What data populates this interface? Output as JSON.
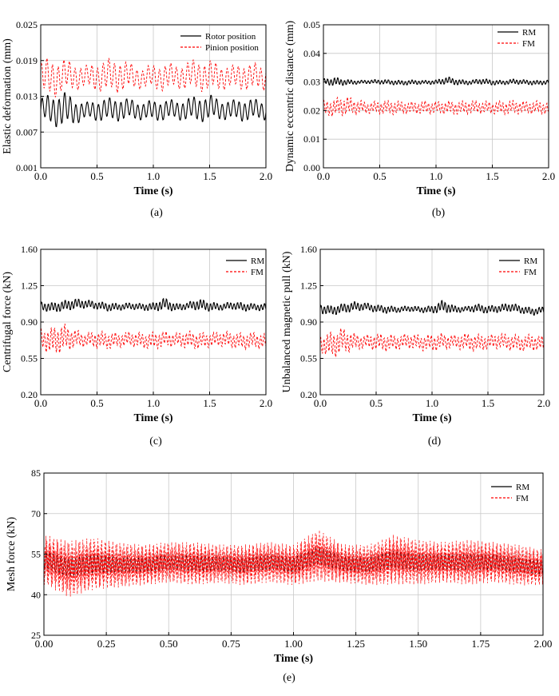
{
  "colors": {
    "rm": "#000000",
    "fm": "#ff0000",
    "grid": "#c8c8c8",
    "axis": "#000000"
  },
  "chart_data": [
    {
      "id": "a",
      "type": "line",
      "caption": "(a)",
      "xlabel": "Time (s)",
      "ylabel": "Elastic deformation (mm)",
      "xlim": [
        0,
        2
      ],
      "ylim": [
        0.001,
        0.025
      ],
      "xticks": [
        "0.0",
        "0.5",
        "1.0",
        "1.5",
        "2.0"
      ],
      "yticks": [
        "0.001",
        "0.007",
        "0.013",
        "0.019",
        "0.025"
      ],
      "legend_position": "top-right",
      "series": [
        {
          "name": "Rotor position",
          "color": "#000000",
          "dash": false,
          "width": 1.1,
          "x": [
            0,
            0.1,
            0.2,
            0.3,
            0.4,
            0.5,
            0.6,
            0.7,
            0.8,
            0.9,
            1.0,
            1.1,
            1.2,
            1.3,
            1.4,
            1.5,
            1.6,
            1.7,
            1.8,
            1.9,
            2.0
          ],
          "min": [
            0.0085,
            0.008,
            0.0075,
            0.0082,
            0.009,
            0.0088,
            0.0086,
            0.0088,
            0.0089,
            0.009,
            0.0087,
            0.0089,
            0.009,
            0.0088,
            0.0086,
            0.0088,
            0.009,
            0.0089,
            0.0087,
            0.0089,
            0.009
          ],
          "max": [
            0.013,
            0.0135,
            0.014,
            0.0128,
            0.012,
            0.0126,
            0.0128,
            0.013,
            0.0126,
            0.0122,
            0.0124,
            0.0126,
            0.0124,
            0.0128,
            0.0132,
            0.0134,
            0.0126,
            0.0124,
            0.0128,
            0.0126,
            0.0124
          ],
          "period": 0.05
        },
        {
          "name": "Pinion position",
          "color": "#ff0000",
          "dash": true,
          "width": 0.9,
          "x": [
            0,
            0.1,
            0.2,
            0.3,
            0.4,
            0.5,
            0.6,
            0.7,
            0.8,
            0.9,
            1.0,
            1.1,
            1.2,
            1.3,
            1.4,
            1.5,
            1.6,
            1.7,
            1.8,
            1.9,
            2.0
          ],
          "min": [
            0.013,
            0.0125,
            0.0135,
            0.014,
            0.0142,
            0.0138,
            0.0132,
            0.0136,
            0.014,
            0.0142,
            0.014,
            0.0138,
            0.0142,
            0.014,
            0.0138,
            0.0136,
            0.014,
            0.0142,
            0.014,
            0.0138,
            0.014
          ],
          "max": [
            0.0192,
            0.0196,
            0.0194,
            0.0188,
            0.0182,
            0.019,
            0.0194,
            0.0196,
            0.0186,
            0.018,
            0.0184,
            0.0188,
            0.0184,
            0.019,
            0.0194,
            0.0192,
            0.0186,
            0.0182,
            0.0188,
            0.0186,
            0.0184
          ],
          "period": 0.05
        }
      ]
    },
    {
      "id": "b",
      "type": "line",
      "caption": "(b)",
      "xlabel": "Time (s)",
      "ylabel": "Dynamic eccentric distance (mm)",
      "xlim": [
        0,
        2
      ],
      "ylim": [
        0,
        0.05
      ],
      "xticks": [
        "0.0",
        "0.5",
        "1.0",
        "1.5",
        "2.0"
      ],
      "yticks": [
        "0.00",
        "0.01",
        "0.02",
        "0.03",
        "0.04",
        "0.05"
      ],
      "legend_position": "top-right",
      "series": [
        {
          "name": "RM",
          "color": "#000000",
          "dash": false,
          "width": 1.1,
          "x": [
            0,
            0.1,
            0.2,
            0.3,
            0.4,
            0.5,
            0.6,
            0.7,
            0.8,
            0.9,
            1.0,
            1.1,
            1.2,
            1.3,
            1.4,
            1.5,
            1.6,
            1.7,
            1.8,
            1.9,
            2.0
          ],
          "min": [
            0.029,
            0.0285,
            0.0288,
            0.0292,
            0.0294,
            0.0292,
            0.029,
            0.0288,
            0.029,
            0.0292,
            0.029,
            0.0292,
            0.0288,
            0.029,
            0.0292,
            0.0288,
            0.029,
            0.0292,
            0.029,
            0.0288,
            0.0292
          ],
          "max": [
            0.0312,
            0.0318,
            0.031,
            0.0306,
            0.0308,
            0.031,
            0.0308,
            0.0306,
            0.0308,
            0.0306,
            0.0308,
            0.032,
            0.031,
            0.0306,
            0.0314,
            0.0308,
            0.0306,
            0.0312,
            0.0308,
            0.0306,
            0.0308
          ],
          "period": 0.03
        },
        {
          "name": "FM",
          "color": "#ff0000",
          "dash": true,
          "width": 0.9,
          "x": [
            0,
            0.1,
            0.2,
            0.3,
            0.4,
            0.5,
            0.6,
            0.7,
            0.8,
            0.9,
            1.0,
            1.1,
            1.2,
            1.3,
            1.4,
            1.5,
            1.6,
            1.7,
            1.8,
            1.9,
            2.0
          ],
          "min": [
            0.018,
            0.0175,
            0.018,
            0.0185,
            0.0188,
            0.0186,
            0.0184,
            0.0186,
            0.0188,
            0.0186,
            0.0188,
            0.0186,
            0.0184,
            0.0186,
            0.0188,
            0.0186,
            0.0184,
            0.0186,
            0.0188,
            0.0186,
            0.0185
          ],
          "max": [
            0.0235,
            0.0245,
            0.0255,
            0.024,
            0.0232,
            0.0236,
            0.0238,
            0.0234,
            0.0232,
            0.0236,
            0.0234,
            0.0236,
            0.0234,
            0.0238,
            0.0236,
            0.0234,
            0.0236,
            0.0238,
            0.0234,
            0.0236,
            0.023
          ],
          "period": 0.03
        }
      ]
    },
    {
      "id": "c",
      "type": "line",
      "caption": "(c)",
      "xlabel": "Time (s)",
      "ylabel": "Centrifugal force (kN)",
      "xlim": [
        0,
        2
      ],
      "ylim": [
        0.2,
        1.6
      ],
      "xticks": [
        "0.0",
        "0.5",
        "1.0",
        "1.5",
        "2.0"
      ],
      "yticks": [
        "0.20",
        "0.55",
        "0.90",
        "1.25",
        "1.60"
      ],
      "legend_position": "top-right",
      "series": [
        {
          "name": "RM",
          "color": "#000000",
          "dash": false,
          "width": 1.1,
          "x": [
            0,
            0.1,
            0.2,
            0.3,
            0.4,
            0.5,
            0.6,
            0.7,
            0.8,
            0.9,
            1.0,
            1.1,
            1.2,
            1.3,
            1.4,
            1.5,
            1.6,
            1.7,
            1.8,
            1.9,
            2.0
          ],
          "min": [
            1.01,
            0.99,
            1.0,
            1.02,
            1.03,
            1.02,
            1.0,
            1.01,
            1.02,
            1.01,
            1.0,
            1.01,
            1.0,
            1.02,
            1.01,
            1.0,
            1.01,
            1.02,
            1.0,
            1.01,
            1.0
          ],
          "max": [
            1.1,
            1.09,
            1.11,
            1.13,
            1.12,
            1.1,
            1.09,
            1.08,
            1.09,
            1.08,
            1.09,
            1.14,
            1.08,
            1.09,
            1.13,
            1.1,
            1.08,
            1.1,
            1.09,
            1.08,
            1.08
          ],
          "period": 0.03
        },
        {
          "name": "FM",
          "color": "#ff0000",
          "dash": true,
          "width": 0.9,
          "x": [
            0,
            0.1,
            0.2,
            0.3,
            0.4,
            0.5,
            0.6,
            0.7,
            0.8,
            0.9,
            1.0,
            1.1,
            1.2,
            1.3,
            1.4,
            1.5,
            1.6,
            1.7,
            1.8,
            1.9,
            2.0
          ],
          "min": [
            0.64,
            0.57,
            0.6,
            0.64,
            0.66,
            0.64,
            0.63,
            0.65,
            0.66,
            0.64,
            0.63,
            0.65,
            0.66,
            0.64,
            0.63,
            0.65,
            0.66,
            0.64,
            0.63,
            0.64,
            0.63
          ],
          "max": [
            0.84,
            0.86,
            0.9,
            0.84,
            0.8,
            0.82,
            0.81,
            0.8,
            0.82,
            0.8,
            0.81,
            0.82,
            0.8,
            0.82,
            0.81,
            0.8,
            0.82,
            0.81,
            0.8,
            0.81,
            0.79
          ],
          "period": 0.03
        }
      ]
    },
    {
      "id": "d",
      "type": "line",
      "caption": "(d)",
      "xlabel": "Time (s)",
      "ylabel": "Unbalanced magnetic pull (kN)",
      "xlim": [
        0,
        2
      ],
      "ylim": [
        0.2,
        1.6
      ],
      "xticks": [
        "0.0",
        "0.5",
        "1.0",
        "1.5",
        "2.0"
      ],
      "yticks": [
        "0.20",
        "0.55",
        "0.90",
        "1.25",
        "1.60"
      ],
      "legend_position": "top-right",
      "series": [
        {
          "name": "RM",
          "color": "#000000",
          "dash": false,
          "width": 1.1,
          "x": [
            0,
            0.1,
            0.2,
            0.3,
            0.4,
            0.5,
            0.6,
            0.7,
            0.8,
            0.9,
            1.0,
            1.1,
            1.2,
            1.3,
            1.4,
            1.5,
            1.6,
            1.7,
            1.8,
            1.9,
            2.0
          ],
          "min": [
            0.98,
            0.96,
            0.98,
            1.0,
            1.01,
            0.99,
            0.98,
            0.99,
            1.0,
            0.99,
            0.98,
            0.99,
            0.98,
            1.0,
            0.99,
            0.98,
            0.99,
            1.0,
            0.98,
            0.96,
            0.98
          ],
          "max": [
            1.08,
            1.06,
            1.08,
            1.1,
            1.09,
            1.07,
            1.06,
            1.05,
            1.06,
            1.05,
            1.06,
            1.12,
            1.06,
            1.05,
            1.08,
            1.06,
            1.07,
            1.09,
            1.06,
            1.04,
            1.05
          ],
          "period": 0.03
        },
        {
          "name": "FM",
          "color": "#ff0000",
          "dash": true,
          "width": 0.9,
          "x": [
            0,
            0.1,
            0.2,
            0.3,
            0.4,
            0.5,
            0.6,
            0.7,
            0.8,
            0.9,
            1.0,
            1.1,
            1.2,
            1.3,
            1.4,
            1.5,
            1.6,
            1.7,
            1.8,
            1.9,
            2.0
          ],
          "min": [
            0.6,
            0.54,
            0.58,
            0.62,
            0.64,
            0.62,
            0.61,
            0.63,
            0.64,
            0.62,
            0.61,
            0.63,
            0.64,
            0.62,
            0.61,
            0.63,
            0.64,
            0.62,
            0.61,
            0.62,
            0.61
          ],
          "max": [
            0.78,
            0.82,
            0.86,
            0.8,
            0.78,
            0.8,
            0.79,
            0.78,
            0.8,
            0.78,
            0.79,
            0.8,
            0.78,
            0.8,
            0.79,
            0.78,
            0.8,
            0.79,
            0.78,
            0.79,
            0.77
          ],
          "period": 0.03
        }
      ]
    },
    {
      "id": "e",
      "type": "line",
      "caption": "(e)",
      "xlabel": "Time (s)",
      "ylabel": "Mesh force (kN)",
      "xlim": [
        0,
        2
      ],
      "ylim": [
        25,
        85
      ],
      "xticks": [
        "0.00",
        "0.25",
        "0.50",
        "0.75",
        "1.00",
        "1.25",
        "1.50",
        "1.75",
        "2.00"
      ],
      "yticks": [
        "25",
        "40",
        "55",
        "70",
        "85"
      ],
      "legend_position": "top-right",
      "series": [
        {
          "name": "RM",
          "color": "#000000",
          "dash": false,
          "width": 0.7,
          "x": [
            0,
            0.1,
            0.2,
            0.3,
            0.4,
            0.5,
            0.6,
            0.7,
            0.8,
            0.9,
            1.0,
            1.1,
            1.2,
            1.3,
            1.4,
            1.5,
            1.6,
            1.7,
            1.8,
            1.9,
            2.0
          ],
          "min": [
            40,
            36,
            38,
            39,
            40,
            41,
            40,
            41,
            40,
            41,
            40,
            41,
            41,
            40,
            40,
            40,
            41,
            40,
            41,
            40,
            40
          ],
          "max": [
            66,
            64,
            65,
            63,
            62,
            63,
            63,
            62,
            62,
            63,
            62,
            68,
            62,
            62,
            66,
            64,
            63,
            64,
            63,
            62,
            60
          ],
          "period": 0.004
        },
        {
          "name": "FM",
          "color": "#ff0000",
          "dash": true,
          "width": 0.7,
          "x": [
            0,
            0.1,
            0.2,
            0.3,
            0.4,
            0.5,
            0.6,
            0.7,
            0.8,
            0.9,
            1.0,
            1.1,
            1.2,
            1.3,
            1.4,
            1.5,
            1.6,
            1.7,
            1.8,
            1.9,
            2.0
          ],
          "min": [
            42,
            37,
            40,
            41,
            42,
            43,
            42,
            43,
            42,
            43,
            42,
            43,
            43,
            42,
            42,
            42,
            43,
            42,
            43,
            42,
            42
          ],
          "max": [
            64,
            62,
            63,
            61,
            60,
            61,
            61,
            60,
            60,
            61,
            60,
            66,
            60,
            60,
            64,
            62,
            61,
            62,
            61,
            60,
            58
          ],
          "period": 0.004
        }
      ]
    }
  ]
}
